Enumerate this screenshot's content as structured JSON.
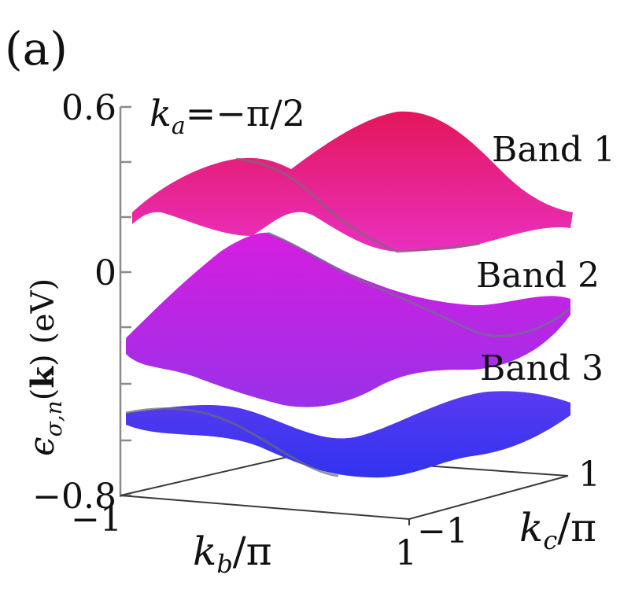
{
  "panel_label": "(a)",
  "chart_data": {
    "type": "surface-3d",
    "title": "k_a=−π/2",
    "title_parts": {
      "var": "k",
      "sub": "a",
      "rest": "=−π/2"
    },
    "zlabel": "ε_{σ,n}(k) (eV)",
    "zlabel_parts": {
      "eps": "ϵ",
      "sub": "σ,n",
      "open": "(",
      "k": "k",
      "close": ")",
      "unit": " (eV)"
    },
    "xlabel": "k_b/π",
    "xlabel_parts": {
      "var": "k",
      "sub": "b",
      "rest": "/π"
    },
    "ylabel": "k_c/π",
    "ylabel_parts": {
      "var": "k",
      "sub": "c",
      "rest": "/π"
    },
    "z_ticks": [
      "0.6",
      "0",
      "−0.8"
    ],
    "x_ticks": [
      "−1",
      "1"
    ],
    "y_ticks": [
      "−1",
      "1"
    ],
    "zlim": [
      -0.8,
      0.6
    ],
    "xlim": [
      -1,
      1
    ],
    "ylim": [
      -1,
      1
    ],
    "bands": [
      {
        "name": "Band 1",
        "approx_range_eV": [
          0.18,
          0.55
        ],
        "color": "#e8196b"
      },
      {
        "name": "Band 2",
        "approx_range_eV": [
          -0.48,
          0.05
        ],
        "color": "#b81fe6"
      },
      {
        "name": "Band 3",
        "approx_range_eV": [
          -0.74,
          -0.55
        ],
        "color": "#3b3af2"
      }
    ]
  }
}
